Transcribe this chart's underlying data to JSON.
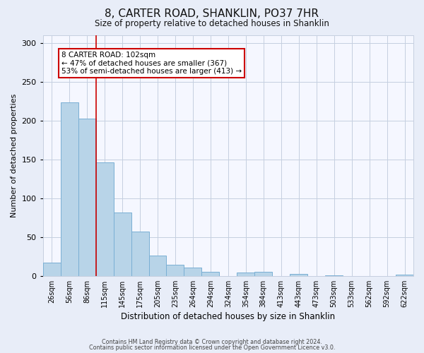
{
  "title": "8, CARTER ROAD, SHANKLIN, PO37 7HR",
  "subtitle": "Size of property relative to detached houses in Shanklin",
  "xlabel": "Distribution of detached houses by size in Shanklin",
  "ylabel": "Number of detached properties",
  "bin_labels": [
    "26sqm",
    "56sqm",
    "86sqm",
    "115sqm",
    "145sqm",
    "175sqm",
    "205sqm",
    "235sqm",
    "264sqm",
    "294sqm",
    "324sqm",
    "354sqm",
    "384sqm",
    "413sqm",
    "443sqm",
    "473sqm",
    "503sqm",
    "533sqm",
    "562sqm",
    "592sqm",
    "622sqm"
  ],
  "bar_heights": [
    17,
    224,
    203,
    146,
    82,
    57,
    26,
    14,
    11,
    5,
    0,
    4,
    5,
    0,
    3,
    0,
    1,
    0,
    0,
    0,
    2
  ],
  "bar_color": "#b8d4e8",
  "bar_edge_color": "#7aafd4",
  "marker_bin_index": 2.5,
  "marker_color": "#cc0000",
  "annotation_title": "8 CARTER ROAD: 102sqm",
  "annotation_line1": "← 47% of detached houses are smaller (367)",
  "annotation_line2": "53% of semi-detached houses are larger (413) →",
  "annotation_box_color": "#ffffff",
  "annotation_box_edge_color": "#cc0000",
  "ylim": [
    0,
    310
  ],
  "yticks": [
    0,
    50,
    100,
    150,
    200,
    250,
    300
  ],
  "footnote1": "Contains HM Land Registry data © Crown copyright and database right 2024.",
  "footnote2": "Contains public sector information licensed under the Open Government Licence v3.0.",
  "background_color": "#e8edf8",
  "plot_background_color": "#f5f7ff"
}
